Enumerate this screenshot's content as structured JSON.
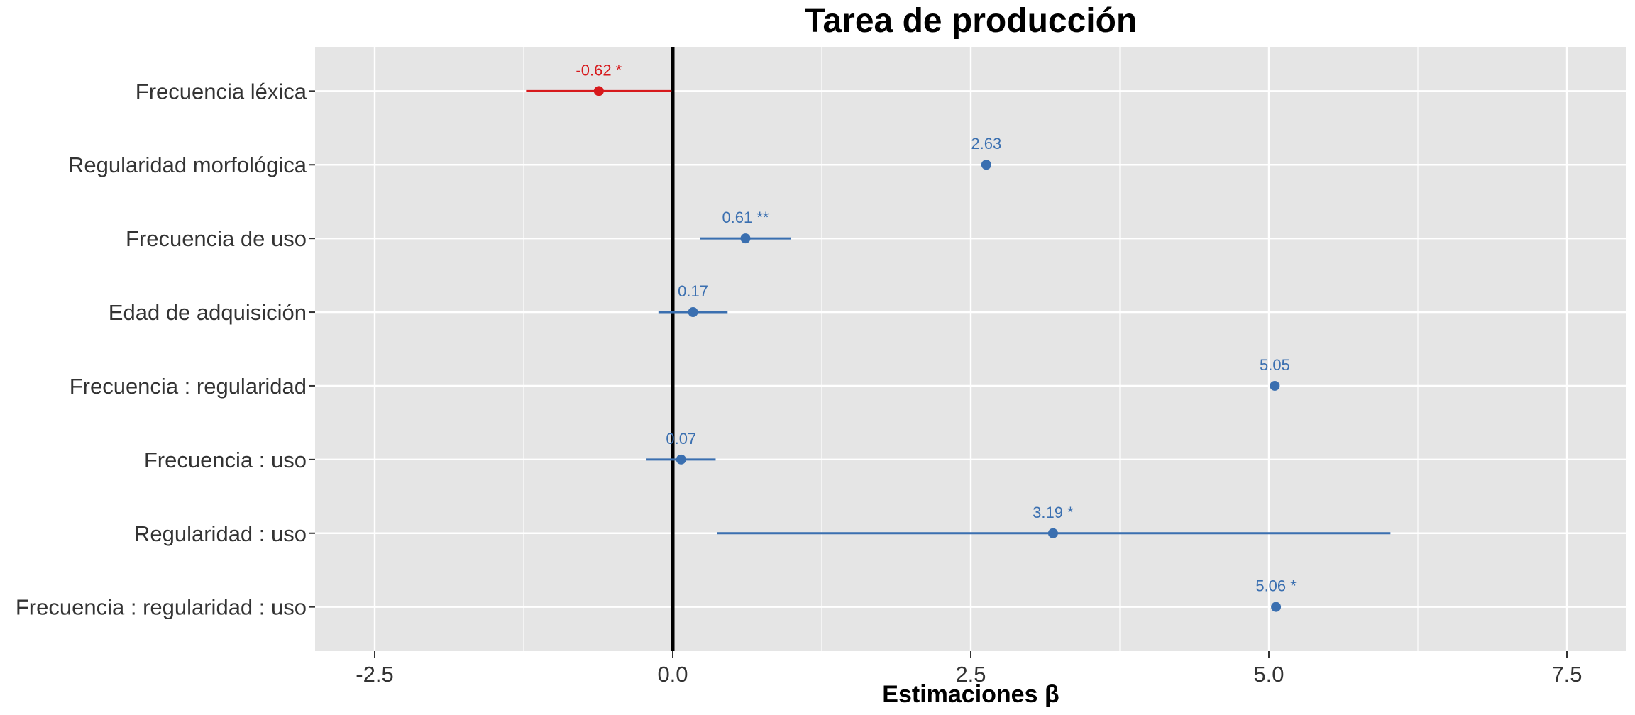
{
  "chart_data": {
    "type": "forest",
    "title": "Tarea de producción",
    "xlabel": "Estimaciones β",
    "ylabel": "",
    "xlim": [
      -3.0,
      8.0
    ],
    "x_ticks": [
      -2.5,
      0.0,
      2.5,
      5.0,
      7.5
    ],
    "x_tick_labels": [
      "-2.5",
      "0.0",
      "2.5",
      "5.0",
      "7.5"
    ],
    "reference_line": 0.0,
    "grid": true,
    "colors": {
      "positive": "#3A6FB0",
      "negative": "#D7191C",
      "panel": "#E5E5E5",
      "grid": "#FFFFFF",
      "reference": "#000000"
    },
    "points": [
      {
        "term": "Frecuencia léxica",
        "estimate": -0.62,
        "ci_low": -1.23,
        "ci_high": -0.01,
        "label": "-0.62 *",
        "sign": "negative"
      },
      {
        "term": "Regularidad morfológica",
        "estimate": 2.63,
        "ci_low": null,
        "ci_high": null,
        "label": "2.63",
        "sign": "positive"
      },
      {
        "term": "Frecuencia de uso",
        "estimate": 0.61,
        "ci_low": 0.23,
        "ci_high": 0.99,
        "label": "0.61 **",
        "sign": "positive"
      },
      {
        "term": "Edad de adquisición",
        "estimate": 0.17,
        "ci_low": -0.12,
        "ci_high": 0.46,
        "label": "0.17",
        "sign": "positive"
      },
      {
        "term": "Frecuencia : regularidad",
        "estimate": 5.05,
        "ci_low": null,
        "ci_high": null,
        "label": "5.05",
        "sign": "positive"
      },
      {
        "term": "Frecuencia : uso",
        "estimate": 0.07,
        "ci_low": -0.22,
        "ci_high": 0.36,
        "label": "0.07",
        "sign": "positive"
      },
      {
        "term": "Regularidad : uso",
        "estimate": 3.19,
        "ci_low": 0.37,
        "ci_high": 6.02,
        "label": "3.19 *",
        "sign": "positive"
      },
      {
        "term": "Frecuencia : regularidad : uso",
        "estimate": 5.06,
        "ci_low": null,
        "ci_high": null,
        "label": "5.06 *",
        "sign": "positive"
      }
    ]
  }
}
